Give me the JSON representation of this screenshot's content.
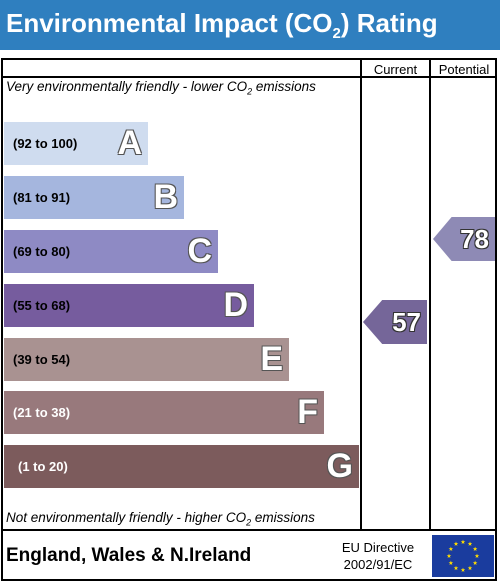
{
  "title": {
    "main": "Environmental Impact (CO",
    "sub": "2",
    "end": ") Rating"
  },
  "columns": {
    "current": "Current",
    "potential": "Potential"
  },
  "top_note": {
    "before": "Very environmentally friendly - lower CO",
    "sub": "2",
    "after": " emissions"
  },
  "bottom_note": {
    "before": "Not environmentally friendly - higher CO",
    "sub": "2",
    "after": " emissions"
  },
  "bands": [
    {
      "letter": "A",
      "range": "(92 to 100)",
      "color": "#cfdcef"
    },
    {
      "letter": "B",
      "range": "(81 to 91)",
      "color": "#a5b6de"
    },
    {
      "letter": "C",
      "range": "(69 to 80)",
      "color": "#8e8ac4"
    },
    {
      "letter": "D",
      "range": "(55 to 68)",
      "color": "#765c9e"
    },
    {
      "letter": "E",
      "range": "(39 to 54)",
      "color": "#a99291"
    },
    {
      "letter": "F",
      "range": "(21 to 38)",
      "color": "#98797c"
    },
    {
      "letter": "G",
      "range": "(1 to 20)",
      "color": "#7c5b5c"
    }
  ],
  "ratings": {
    "current": "57",
    "potential": "78"
  },
  "footer": {
    "region": "England, Wales & N.Ireland",
    "directive_line1": "EU Directive",
    "directive_line2": "2002/91/EC"
  }
}
